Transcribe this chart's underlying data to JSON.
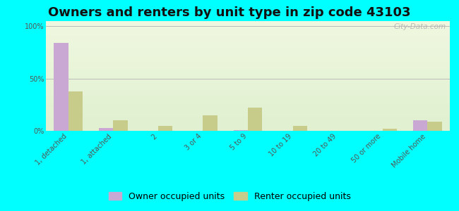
{
  "title": "Owners and renters by unit type in zip code 43103",
  "categories": [
    "1, detached",
    "1, attached",
    "2",
    "3 or 4",
    "5 to 9",
    "10 to 19",
    "20 to 49",
    "50 or more",
    "Mobile home"
  ],
  "owner_values": [
    84,
    3,
    0,
    0,
    1,
    0,
    0,
    0,
    10
  ],
  "renter_values": [
    38,
    10,
    5,
    15,
    22,
    5,
    0,
    2,
    9
  ],
  "owner_color": "#c9a8d4",
  "renter_color": "#c8cc8a",
  "background_color": "#00ffff",
  "ylabel_ticks": [
    "0%",
    "50%",
    "100%"
  ],
  "ytick_vals": [
    0,
    50,
    100
  ],
  "ylim": [
    0,
    105
  ],
  "bar_width": 0.32,
  "legend_owner": "Owner occupied units",
  "legend_renter": "Renter occupied units",
  "title_fontsize": 13,
  "tick_fontsize": 7,
  "legend_fontsize": 9,
  "watermark": "City-Data.com"
}
